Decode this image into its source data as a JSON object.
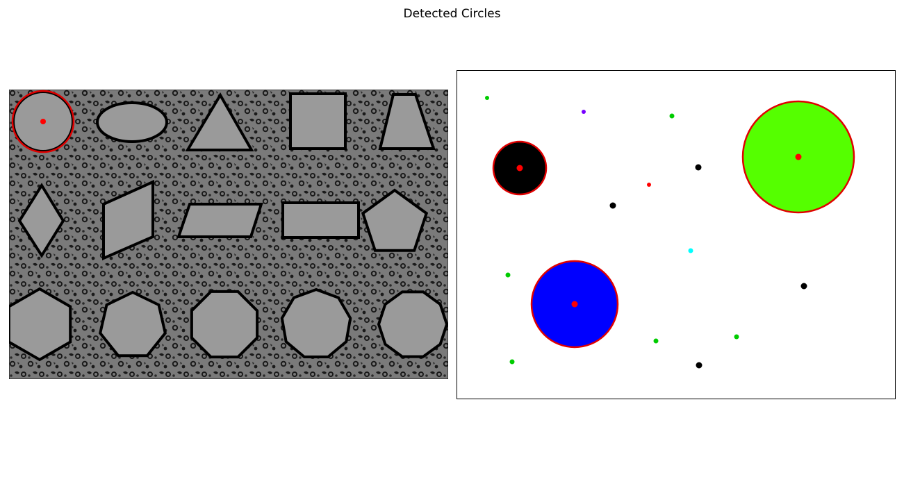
{
  "title": "Detected Circles",
  "colors": {
    "background": "#ffffff",
    "shape_fill": "#9a9a9a",
    "shape_stroke": "#000000",
    "detection_ring": "#e00000",
    "detection_center": "#ff0000",
    "texture_light": "#7a7a7a",
    "texture_dark": "#1a1a1a"
  },
  "left_panel": {
    "shapes": [
      {
        "name": "circle",
        "detected": true
      },
      {
        "name": "ellipse",
        "detected": false
      },
      {
        "name": "triangle",
        "detected": false
      },
      {
        "name": "square",
        "detected": false
      },
      {
        "name": "trapezoid",
        "detected": false
      },
      {
        "name": "rhombus",
        "detected": false
      },
      {
        "name": "parallelogram-vertical",
        "detected": false
      },
      {
        "name": "parallelogram",
        "detected": false
      },
      {
        "name": "rectangle",
        "detected": false
      },
      {
        "name": "pentagon",
        "detected": false
      },
      {
        "name": "hexagon",
        "detected": false
      },
      {
        "name": "heptagon",
        "detected": false
      },
      {
        "name": "octagon",
        "detected": false
      },
      {
        "name": "nonagon",
        "detected": false
      },
      {
        "name": "decagon",
        "detected": false
      }
    ]
  },
  "right_panel": {
    "large_circles": [
      {
        "name": "black-circle",
        "color": "#000000",
        "detected": true
      },
      {
        "name": "green-circle",
        "color": "#55ff00",
        "detected": true
      },
      {
        "name": "blue-circle",
        "color": "#0000ff",
        "detected": true
      }
    ],
    "small_dots": [
      {
        "color": "#00cc00"
      },
      {
        "color": "#7700ff"
      },
      {
        "color": "#00cc00"
      },
      {
        "color": "#000000"
      },
      {
        "color": "#ff0000"
      },
      {
        "color": "#000000"
      },
      {
        "color": "#00ffff"
      },
      {
        "color": "#00cc00"
      },
      {
        "color": "#000000"
      },
      {
        "color": "#00cc00"
      },
      {
        "color": "#00cc00"
      },
      {
        "color": "#00cc00"
      },
      {
        "color": "#000000"
      }
    ]
  }
}
